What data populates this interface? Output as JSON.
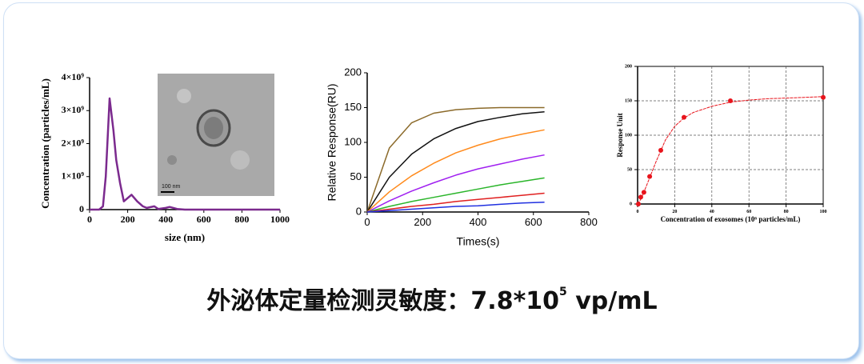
{
  "chart_data": [
    {
      "type": "line",
      "xlabel": "size (nm)",
      "ylabel": "Concentration (particles/mL)",
      "x": [
        0,
        50,
        70,
        85,
        105,
        125,
        140,
        160,
        180,
        200,
        220,
        250,
        280,
        300,
        340,
        360,
        400,
        420,
        460,
        500,
        600,
        800,
        1000
      ],
      "values": [
        0,
        0,
        100000000,
        1000000000,
        3370000000,
        2400000000,
        1500000000,
        800000000,
        250000000,
        350000000,
        450000000,
        250000000,
        100000000,
        50000000,
        100000000,
        20000000,
        50000000,
        80000000,
        20000000,
        0,
        0,
        0,
        0
      ],
      "color": "#7b2a8e",
      "xlim": [
        0,
        1000
      ],
      "xticks": [
        0,
        200,
        400,
        600,
        800,
        1000
      ],
      "ylim": [
        0,
        4000000000
      ],
      "yticks": [
        0,
        {
          "value": 1000000000,
          "label": "1×10⁹"
        },
        {
          "value": 2000000000,
          "label": "2×10⁹"
        },
        {
          "value": 3000000000,
          "label": "3×10⁹"
        },
        {
          "value": 4000000000,
          "label": "4×10⁹"
        }
      ],
      "grid": false,
      "inset_scale_label": "100 nm"
    },
    {
      "type": "line",
      "xlabel": "Times(s)",
      "ylabel": "Relative Response(RU)",
      "x": [
        0,
        80,
        160,
        240,
        320,
        400,
        480,
        560,
        640
      ],
      "series": [
        {
          "color": "#8b6a2a",
          "values": [
            0,
            92,
            128,
            142,
            147,
            149,
            150,
            150,
            150
          ]
        },
        {
          "color": "#111111",
          "values": [
            0,
            50,
            83,
            105,
            120,
            130,
            136,
            141,
            144
          ]
        },
        {
          "color": "#ff8a1c",
          "values": [
            0,
            29,
            52,
            70,
            85,
            96,
            105,
            112,
            118
          ]
        },
        {
          "color": "#a020f0",
          "values": [
            0,
            16,
            30,
            42,
            53,
            62,
            69,
            76,
            82
          ]
        },
        {
          "color": "#2ab52a",
          "values": [
            0,
            8,
            15,
            21,
            27,
            33,
            39,
            44,
            49
          ]
        },
        {
          "color": "#e02020",
          "values": [
            0,
            4,
            8,
            11,
            15,
            18,
            21,
            24,
            27
          ]
        },
        {
          "color": "#2030e0",
          "values": [
            0,
            2,
            4,
            6,
            8,
            9,
            11,
            13,
            14
          ]
        }
      ],
      "xlim": [
        0,
        800
      ],
      "xticks": [
        0,
        200,
        400,
        600,
        800
      ],
      "ylim": [
        0,
        200
      ],
      "yticks": [
        0,
        50,
        100,
        150,
        200
      ],
      "grid": false
    },
    {
      "type": "scatter",
      "xlabel": "Concentration of exosomes (10⁶ particles/mL)",
      "ylabel": "Response Unit",
      "points": {
        "x": [
          0.4,
          1.7,
          3.4,
          6.5,
          12.5,
          25,
          50,
          100
        ],
        "values": [
          0,
          10,
          17,
          40,
          78,
          126,
          150,
          155
        ]
      },
      "fit": {
        "x": [
          0,
          2,
          5,
          10,
          15,
          20,
          25,
          30,
          40,
          50,
          60,
          70,
          80,
          90,
          100
        ],
        "values": [
          0,
          8,
          28,
          62,
          93,
          113,
          125,
          133,
          142,
          148,
          151,
          153,
          154,
          155,
          156
        ]
      },
      "color": "#e8141c",
      "xlim": [
        0,
        100
      ],
      "xticks": [
        0,
        20,
        40,
        60,
        80,
        100
      ],
      "ylim": [
        0,
        200
      ],
      "yticks": [
        0,
        50,
        100,
        150,
        200
      ],
      "grid": true
    }
  ],
  "caption": {
    "text": "外泌体定量检测灵敏度：7.8*10",
    "superscript": "5",
    "suffix": " vp/mL"
  }
}
